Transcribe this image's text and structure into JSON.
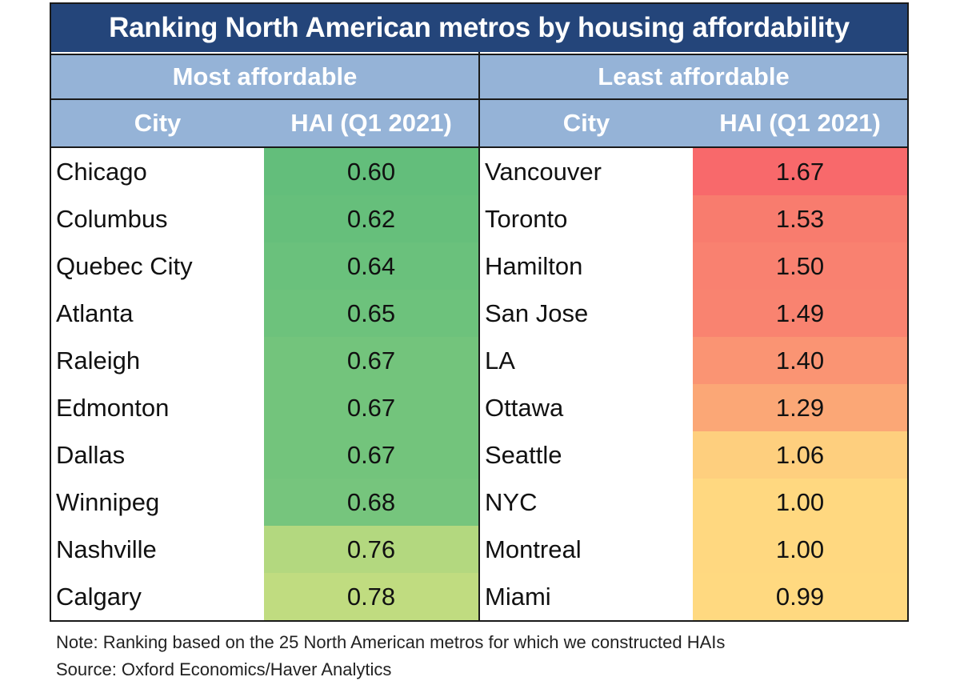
{
  "chart_data": {
    "type": "table",
    "title": "Ranking North American metros by housing affordability",
    "groups": [
      {
        "heading": "Most affordable",
        "columns": [
          "City",
          "HAI (Q1 2021)"
        ],
        "rows": [
          {
            "city": "Chicago",
            "hai": "0.60",
            "color": "#63be7b"
          },
          {
            "city": "Columbus",
            "hai": "0.62",
            "color": "#66bf7b"
          },
          {
            "city": "Quebec City",
            "hai": "0.64",
            "color": "#6ac17c"
          },
          {
            "city": "Atlanta",
            "hai": "0.65",
            "color": "#6dc27c"
          },
          {
            "city": "Raleigh",
            "hai": "0.67",
            "color": "#73c47c"
          },
          {
            "city": "Edmonton",
            "hai": "0.67",
            "color": "#73c47c"
          },
          {
            "city": "Dallas",
            "hai": "0.67",
            "color": "#73c47c"
          },
          {
            "city": "Winnipeg",
            "hai": "0.68",
            "color": "#76c57d"
          },
          {
            "city": "Nashville",
            "hai": "0.76",
            "color": "#b3d87f"
          },
          {
            "city": "Calgary",
            "hai": "0.78",
            "color": "#c0dc80"
          }
        ]
      },
      {
        "heading": "Least affordable",
        "columns": [
          "City",
          "HAI (Q1 2021)"
        ],
        "rows": [
          {
            "city": "Vancouver",
            "hai": "1.67",
            "color": "#f8696b"
          },
          {
            "city": "Toronto",
            "hai": "1.53",
            "color": "#f87c6e"
          },
          {
            "city": "Hamilton",
            "hai": "1.50",
            "color": "#f98170"
          },
          {
            "city": "San Jose",
            "hai": "1.49",
            "color": "#f98370"
          },
          {
            "city": "LA",
            "hai": "1.40",
            "color": "#fa9473"
          },
          {
            "city": "Ottawa",
            "hai": "1.29",
            "color": "#fba776"
          },
          {
            "city": "Seattle",
            "hai": "1.06",
            "color": "#fecf7e"
          },
          {
            "city": "NYC",
            "hai": "1.00",
            "color": "#ffd880"
          },
          {
            "city": "Montreal",
            "hai": "1.00",
            "color": "#ffd880"
          },
          {
            "city": "Miami",
            "hai": "0.99",
            "color": "#ffd980"
          }
        ]
      }
    ]
  },
  "notes": {
    "note": "Note: Ranking based on the 25 North American metros for which we constructed HAIs",
    "source": "Source: Oxford Economics/Haver Analytics"
  }
}
